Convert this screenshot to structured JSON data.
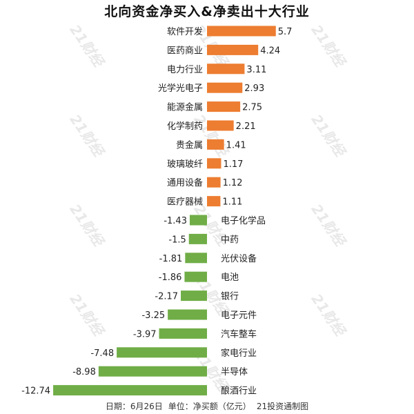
{
  "colors": {
    "positive": "#ED7D31",
    "negative": "#70AD47",
    "text": "#222222",
    "watermark": "#e8e8e8"
  },
  "watermark_text": "21财经",
  "chart_data": {
    "type": "bar",
    "orientation": "horizontal",
    "title": "北向资金净买入&净卖出十大行业",
    "categories": [
      "软件开发",
      "医药商业",
      "电力行业",
      "光学光电子",
      "能源金属",
      "化学制药",
      "贵金属",
      "玻璃玻纤",
      "通用设备",
      "医疗器械",
      "电子化学品",
      "中药",
      "光伏设备",
      "电池",
      "银行",
      "电子元件",
      "汽车整车",
      "家电行业",
      "半导体",
      "酿酒行业"
    ],
    "values": [
      5.7,
      4.24,
      3.11,
      2.93,
      2.75,
      2.21,
      1.41,
      1.17,
      1.12,
      1.11,
      -1.43,
      -1.5,
      -1.81,
      -1.86,
      -2.17,
      -3.25,
      -3.97,
      -7.48,
      -8.98,
      -12.74
    ],
    "value_labels": [
      "5.7",
      "4.24",
      "3.11",
      "2.93",
      "2.75",
      "2.21",
      "1.41",
      "1.17",
      "1.12",
      "1.11",
      "-1.43",
      "-1.5",
      "-1.81",
      "-1.86",
      "-2.17",
      "-3.25",
      "-3.97",
      "-7.48",
      "-8.98",
      "-12.74"
    ],
    "grid": false,
    "legend": "none"
  },
  "footer": {
    "date": "日期：6月26日",
    "unit": "单位：净买额（亿元）",
    "source": "21投资通制图"
  }
}
